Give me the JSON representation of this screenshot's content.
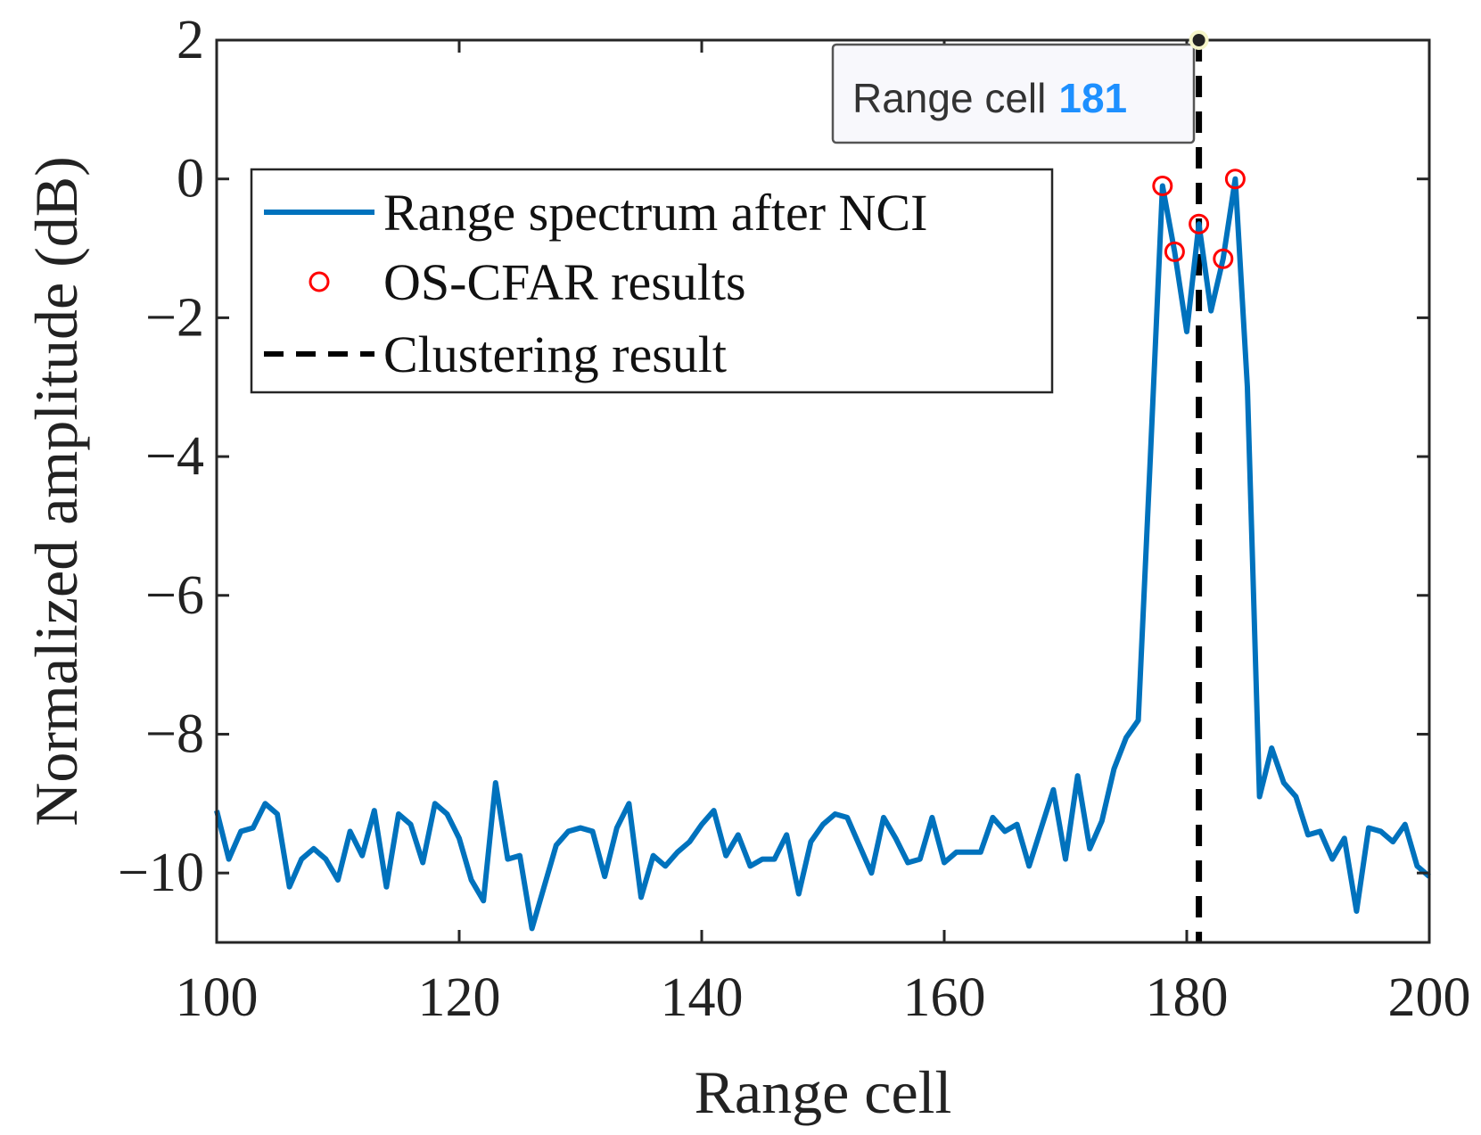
{
  "chart_data": {
    "type": "line",
    "title": "",
    "xlabel": "Range cell",
    "ylabel": "Normalized amplitude (dB)",
    "xlim": [
      100,
      200
    ],
    "ylim": [
      -11,
      2
    ],
    "xticks": [
      100,
      120,
      140,
      160,
      180,
      200
    ],
    "yticks": [
      2,
      0,
      -2,
      -4,
      -6,
      -8,
      -10
    ],
    "ytick_labels": [
      "2",
      "0",
      "−2",
      "−4",
      "−6",
      "−8",
      "−10"
    ],
    "grid": false,
    "legend_position": "top-left",
    "series": [
      {
        "name": "Range spectrum after NCI",
        "color": "#0072BD",
        "x_start": 100,
        "values": [
          -9.1,
          -9.8,
          -9.4,
          -9.35,
          -9.0,
          -9.15,
          -10.2,
          -9.8,
          -9.65,
          -9.8,
          -10.1,
          -9.4,
          -9.75,
          -9.1,
          -10.2,
          -9.15,
          -9.3,
          -9.85,
          -9.0,
          -9.15,
          -9.5,
          -10.1,
          -10.4,
          -8.7,
          -9.8,
          -9.75,
          -10.8,
          -10.2,
          -9.6,
          -9.4,
          -9.35,
          -9.4,
          -10.05,
          -9.35,
          -9.0,
          -10.35,
          -9.75,
          -9.9,
          -9.7,
          -9.55,
          -9.3,
          -9.1,
          -9.75,
          -9.45,
          -9.9,
          -9.8,
          -9.8,
          -9.45,
          -10.3,
          -9.55,
          -9.3,
          -9.15,
          -9.2,
          -9.6,
          -10.0,
          -9.2,
          -9.5,
          -9.85,
          -9.8,
          -9.2,
          -9.85,
          -9.7,
          -9.7,
          -9.7,
          -9.2,
          -9.4,
          -9.3,
          -9.9,
          -9.35,
          -8.8,
          -9.8,
          -8.6,
          -9.65,
          -9.25,
          -8.5,
          -8.05,
          -7.8,
          -4.0,
          -0.1,
          -1.05,
          -2.2,
          -0.65,
          -1.9,
          -1.15,
          0.0,
          -3.0,
          -8.9,
          -8.2,
          -8.7,
          -8.9,
          -9.45,
          -9.4,
          -9.8,
          -9.5,
          -10.55,
          -9.35,
          -9.4,
          -9.55,
          -9.3,
          -9.9,
          -10.05
        ]
      },
      {
        "name": "OS-CFAR results",
        "color": "#FF0000",
        "marker": "circle",
        "x": [
          178,
          179,
          181,
          183,
          184
        ],
        "y": [
          -0.1,
          -1.05,
          -0.65,
          -1.15,
          0.0
        ]
      },
      {
        "name": "Clustering result",
        "color": "#000000",
        "style": "dashed",
        "x_value": 181
      }
    ],
    "annotation": {
      "label": "Range cell",
      "value": "181",
      "value_color": "#1E90FF"
    }
  }
}
